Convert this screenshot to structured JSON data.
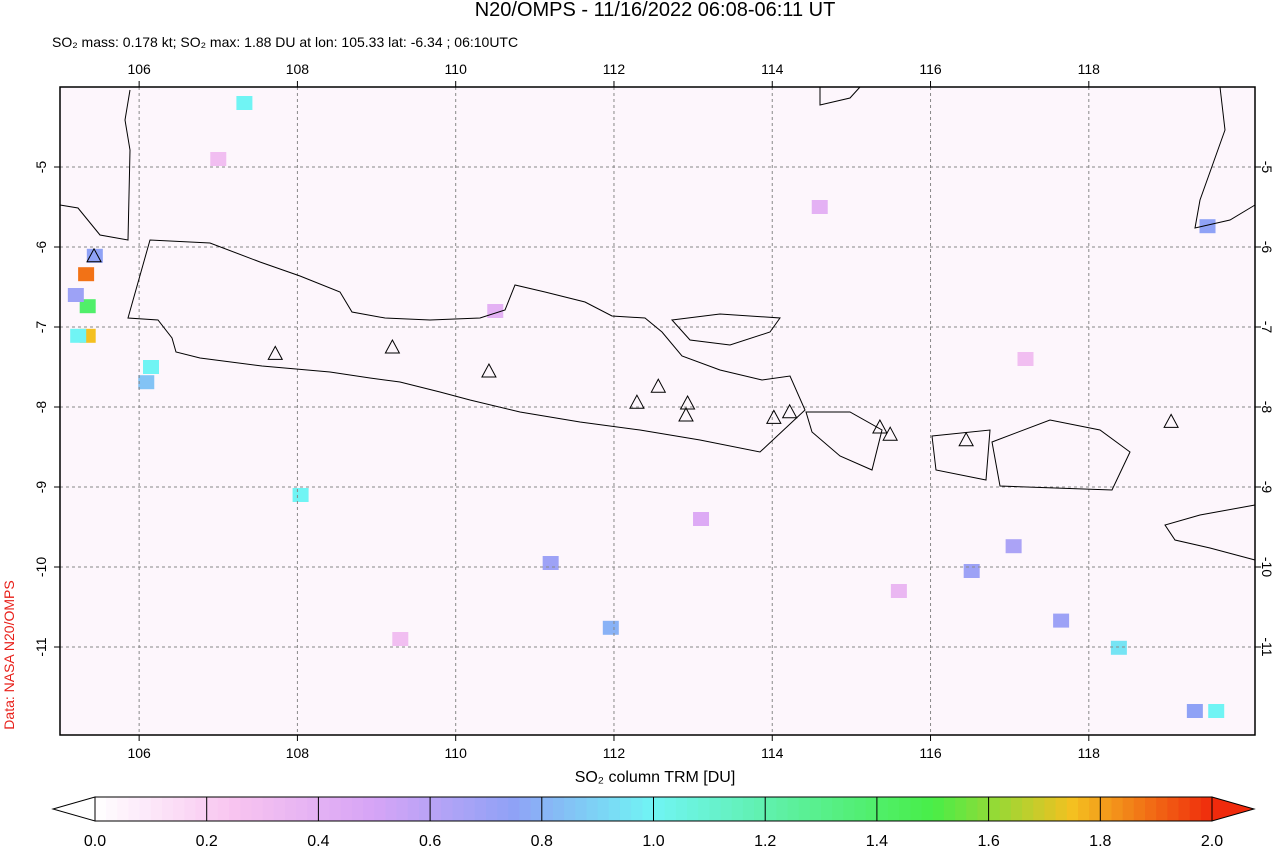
{
  "chart_data": {
    "type": "map",
    "title": "N20/OMPS - 11/16/2022 06:08-06:11 UT",
    "subtitle": "SO₂ mass: 0.178 kt; SO₂ max: 1.88 DU at lon: 105.33 lat: -6.34 ; 06:10UTC",
    "credit": "Data: NASA N20/OMPS",
    "colorbar_label": "SO₂ column TRM [DU]",
    "xlim": [
      105.0,
      120.1
    ],
    "ylim": [
      -12.1,
      -4.0
    ],
    "xticks": [
      106,
      108,
      110,
      112,
      114,
      116,
      118
    ],
    "yticks": [
      -5,
      -6,
      -7,
      -8,
      -9,
      -10,
      -11
    ],
    "grid": true,
    "clim": [
      0,
      2
    ],
    "cticks": [
      {
        "value": 0,
        "label": "0.0"
      },
      {
        "value": 0.2,
        "label": "0.2"
      },
      {
        "value": 0.4,
        "label": "0.4"
      },
      {
        "value": 0.6,
        "label": "0.6"
      },
      {
        "value": 0.8,
        "label": "0.8"
      },
      {
        "value": 1,
        "label": "1.0"
      },
      {
        "value": 1.2,
        "label": "1.2"
      },
      {
        "value": 1.4,
        "label": "1.4"
      },
      {
        "value": 1.6,
        "label": "1.6"
      },
      {
        "value": 1.8,
        "label": "1.8"
      },
      {
        "value": 2,
        "label": "2.0"
      }
    ],
    "colormap": [
      "#ffffff",
      "#f8c4f0",
      "#d6a4f6",
      "#8fa2f6",
      "#70f4f4",
      "#5cf09c",
      "#48ee48",
      "#f4c020",
      "#f02a0c"
    ],
    "pixels": {
      "lon": [
        105.44,
        105.33,
        105.35,
        105.35,
        105.23,
        106.15,
        106.09,
        107.33,
        108.04,
        119.5,
        118.38,
        119.61,
        119.34,
        111.96,
        111.2,
        117.65,
        116.52,
        117.05,
        105.2,
        107.0,
        110.5,
        113.1,
        115.6,
        117.2,
        109.3,
        114.6
      ],
      "lat": [
        -6.11,
        -6.34,
        -6.74,
        -7.11,
        -7.11,
        -7.5,
        -7.69,
        -4.2,
        -9.1,
        -5.74,
        -11.01,
        -11.8,
        -11.8,
        -10.76,
        -9.95,
        -10.67,
        -10.05,
        -9.74,
        -6.6,
        -4.9,
        -6.8,
        -9.4,
        -10.3,
        -7.4,
        -10.9,
        -5.5
      ],
      "values": [
        0.75,
        1.88,
        1.4,
        1.75,
        1.0,
        1.0,
        0.85,
        1.0,
        1.0,
        0.75,
        0.95,
        1.0,
        0.75,
        0.8,
        0.7,
        0.7,
        0.7,
        0.65,
        0.7,
        0.3,
        0.4,
        0.45,
        0.35,
        0.3,
        0.3,
        0.4
      ]
    },
    "volcanoes": {
      "lon": [
        105.43,
        107.72,
        109.2,
        110.42,
        112.29,
        112.56,
        112.93,
        112.91,
        114.02,
        114.22,
        115.36,
        115.49,
        116.45,
        119.04
      ],
      "lat": [
        -6.11,
        -7.33,
        -7.25,
        -7.55,
        -7.94,
        -7.74,
        -7.95,
        -8.1,
        -8.13,
        -8.06,
        -8.25,
        -8.34,
        -8.41,
        -8.18
      ]
    }
  }
}
